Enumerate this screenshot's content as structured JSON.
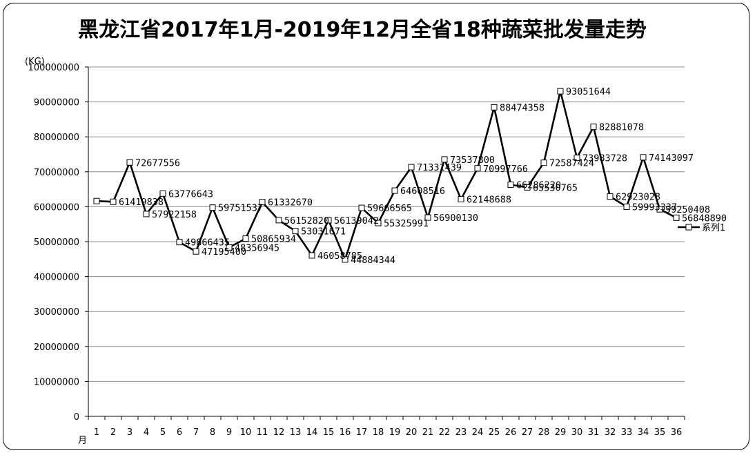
{
  "chart_data": {
    "type": "line",
    "title": "黑龙江省2017年1月-2019年12月全省18种蔬菜批发量走势",
    "ylabel": "(KG)",
    "xlabel": "月",
    "ylim": [
      0,
      100000000
    ],
    "yticks": [
      "0",
      "10000000",
      "20000000",
      "30000000",
      "40000000",
      "50000000",
      "60000000",
      "70000000",
      "80000000",
      "90000000",
      "100000000"
    ],
    "categories": [
      "1",
      "2",
      "3",
      "4",
      "5",
      "6",
      "7",
      "8",
      "9",
      "10",
      "11",
      "12",
      "13",
      "14",
      "15",
      "16",
      "17",
      "18",
      "19",
      "20",
      "21",
      "22",
      "23",
      "24",
      "25",
      "26",
      "27",
      "28",
      "29",
      "30",
      "31",
      "32",
      "33",
      "34",
      "35",
      "36"
    ],
    "series": [
      {
        "name": "系列1",
        "values": [
          61620000,
          61419838,
          72677556,
          57922158,
          63776643,
          49866435,
          47195400,
          59751537,
          48356945,
          50865934,
          61332670,
          56152820,
          53031671,
          46058785,
          56139042,
          44884344,
          59666565,
          55325991,
          64608516,
          71331439,
          56900130,
          73537800,
          62148688,
          70997766,
          88474358,
          66286220,
          65530765,
          72587424,
          93051644,
          73983728,
          82881078,
          62923028,
          59993337,
          74143097,
          59250408,
          56848890
        ],
        "labels": [
          "",
          "61419838",
          "72677556",
          "57922158",
          "63776643",
          "49866435",
          "47195400",
          "59751537",
          "48356945",
          "50865934",
          "61332670",
          "56152820",
          "53031671",
          "46058785",
          "56139042",
          "44884344",
          "59666565",
          "55325991",
          "64608516",
          "71331439",
          "56900130",
          "73537800",
          "62148688",
          "70997766",
          "88474358",
          "66286220",
          "65530765",
          "72587424",
          "93051644",
          "73983728",
          "82881078",
          "62923028",
          "59993337",
          "74143097",
          "59250408",
          "56848890"
        ]
      }
    ],
    "grid": true,
    "legend": "right"
  }
}
